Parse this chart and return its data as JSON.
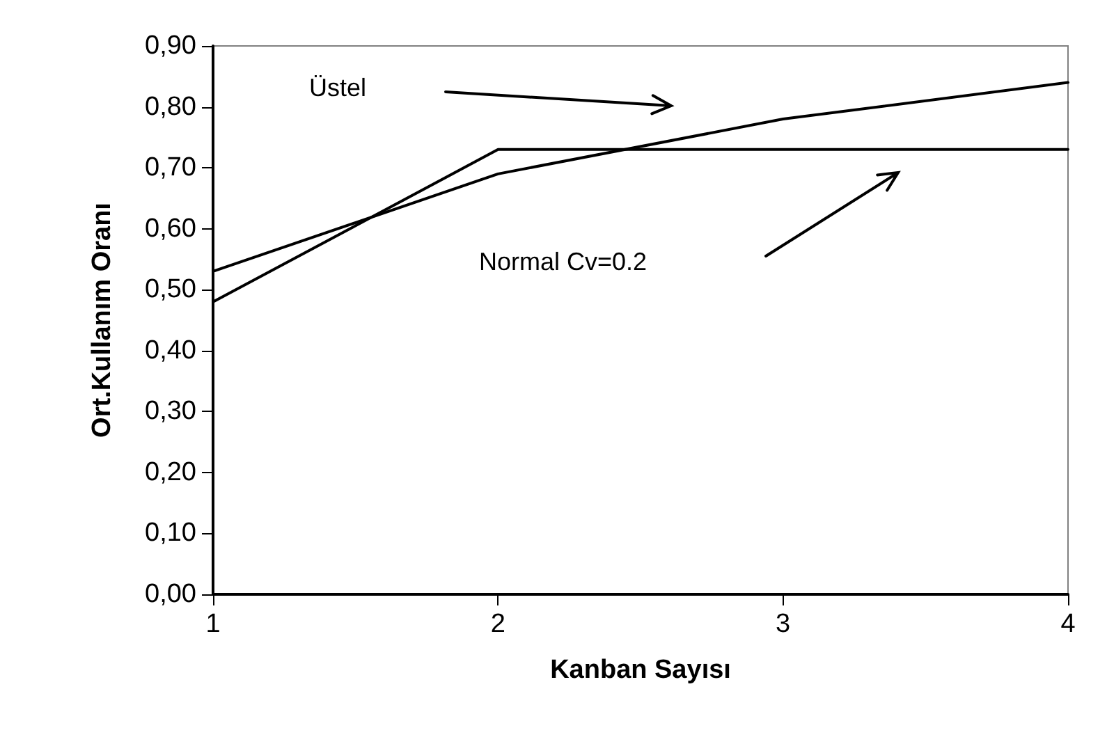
{
  "chart_data": {
    "type": "line",
    "xlabel": "Kanban Sayısı",
    "ylabel": "Ort.Kullanım Oranı",
    "x": [
      1,
      2,
      3,
      4
    ],
    "series": [
      {
        "color": "#000000",
        "values": [
          0.53,
          0.69,
          0.78,
          0.84
        ]
      },
      {
        "color": "#000000",
        "values": [
          0.48,
          0.73,
          0.73,
          0.73
        ]
      }
    ],
    "annotations": [
      "Üstel",
      "Normal Cv=0.2"
    ],
    "xlim": [
      1,
      4
    ],
    "xticks": [
      1,
      2,
      3,
      4
    ],
    "ylim": [
      0,
      0.9
    ],
    "yticks": [
      {
        "value": 0,
        "label": "0,00"
      },
      {
        "value": 0.1,
        "label": "0,10"
      },
      {
        "value": 0.2,
        "label": "0,20"
      },
      {
        "value": 0.3,
        "label": "0,30"
      },
      {
        "value": 0.4,
        "label": "0,40"
      },
      {
        "value": 0.5,
        "label": "0,50"
      },
      {
        "value": 0.6,
        "label": "0,60"
      },
      {
        "value": 0.7,
        "label": "0,70"
      },
      {
        "value": 0.8,
        "label": "0,80"
      },
      {
        "value": 0.9,
        "label": "0,90"
      }
    ],
    "grid": false,
    "marker": "none",
    "line_style": "solid"
  }
}
